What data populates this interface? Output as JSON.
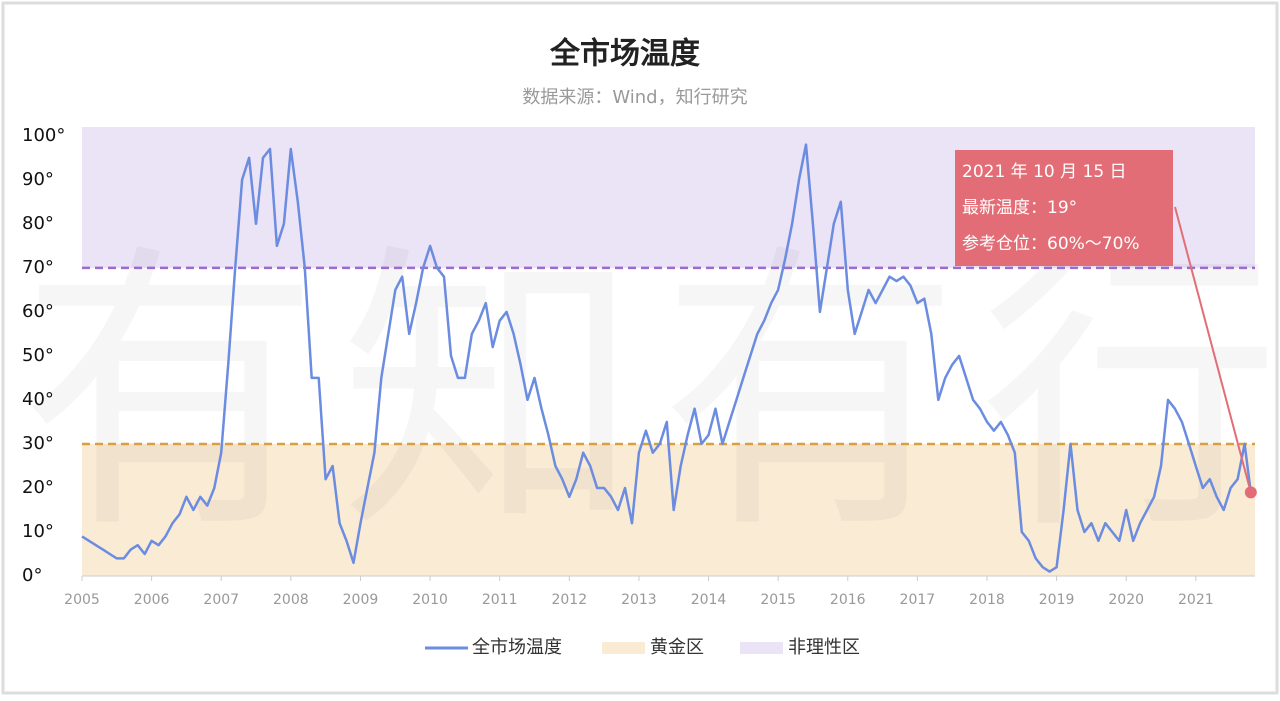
{
  "chart_data": {
    "type": "line",
    "title": "全市场温度",
    "subtitle": "数据来源：Wind，知行研究",
    "watermark": "有知有行",
    "x": [
      2005.0,
      2005.1,
      2005.2,
      2005.3,
      2005.4,
      2005.5,
      2005.6,
      2005.7,
      2005.8,
      2005.9,
      2006.0,
      2006.1,
      2006.2,
      2006.3,
      2006.4,
      2006.5,
      2006.6,
      2006.7,
      2006.8,
      2006.9,
      2007.0,
      2007.1,
      2007.2,
      2007.3,
      2007.4,
      2007.5,
      2007.6,
      2007.7,
      2007.8,
      2007.9,
      2008.0,
      2008.1,
      2008.2,
      2008.3,
      2008.4,
      2008.5,
      2008.6,
      2008.7,
      2008.8,
      2008.9,
      2009.0,
      2009.1,
      2009.2,
      2009.3,
      2009.4,
      2009.5,
      2009.6,
      2009.7,
      2009.8,
      2009.9,
      2010.0,
      2010.1,
      2010.2,
      2010.3,
      2010.4,
      2010.5,
      2010.6,
      2010.7,
      2010.8,
      2010.9,
      2011.0,
      2011.1,
      2011.2,
      2011.3,
      2011.4,
      2011.5,
      2011.6,
      2011.7,
      2011.8,
      2011.9,
      2012.0,
      2012.1,
      2012.2,
      2012.3,
      2012.4,
      2012.5,
      2012.6,
      2012.7,
      2012.8,
      2012.9,
      2013.0,
      2013.1,
      2013.2,
      2013.3,
      2013.4,
      2013.5,
      2013.6,
      2013.7,
      2013.8,
      2013.9,
      2014.0,
      2014.1,
      2014.2,
      2014.3,
      2014.4,
      2014.5,
      2014.6,
      2014.7,
      2014.8,
      2014.9,
      2015.0,
      2015.1,
      2015.2,
      2015.3,
      2015.4,
      2015.5,
      2015.6,
      2015.7,
      2015.8,
      2015.9,
      2016.0,
      2016.1,
      2016.2,
      2016.3,
      2016.4,
      2016.5,
      2016.6,
      2016.7,
      2016.8,
      2016.9,
      2017.0,
      2017.1,
      2017.2,
      2017.3,
      2017.4,
      2017.5,
      2017.6,
      2017.7,
      2017.8,
      2017.9,
      2018.0,
      2018.1,
      2018.2,
      2018.3,
      2018.4,
      2018.5,
      2018.6,
      2018.7,
      2018.8,
      2018.9,
      2019.0,
      2019.1,
      2019.2,
      2019.3,
      2019.4,
      2019.5,
      2019.6,
      2019.7,
      2019.8,
      2019.9,
      2020.0,
      2020.1,
      2020.2,
      2020.3,
      2020.4,
      2020.5,
      2020.6,
      2020.7,
      2020.8,
      2020.9,
      2021.0,
      2021.1,
      2021.2,
      2021.3,
      2021.4,
      2021.5,
      2021.6,
      2021.7,
      2021.79
    ],
    "series": [
      {
        "name": "全市场温度",
        "color": "#6b8ce0",
        "values": [
          9,
          8,
          7,
          6,
          5,
          4,
          4,
          6,
          7,
          5,
          8,
          7,
          9,
          12,
          14,
          18,
          15,
          18,
          16,
          20,
          28,
          48,
          70,
          90,
          95,
          80,
          95,
          97,
          75,
          80,
          97,
          85,
          70,
          45,
          45,
          22,
          25,
          12,
          8,
          3,
          12,
          20,
          28,
          45,
          55,
          65,
          68,
          55,
          62,
          70,
          75,
          70,
          68,
          50,
          45,
          45,
          55,
          58,
          62,
          52,
          58,
          60,
          55,
          48,
          40,
          45,
          38,
          32,
          25,
          22,
          18,
          22,
          28,
          25,
          20,
          20,
          18,
          15,
          20,
          12,
          28,
          33,
          28,
          30,
          35,
          15,
          25,
          32,
          38,
          30,
          32,
          38,
          30,
          35,
          40,
          45,
          50,
          55,
          58,
          62,
          65,
          72,
          80,
          90,
          98,
          80,
          60,
          70,
          80,
          85,
          65,
          55,
          60,
          65,
          62,
          65,
          68,
          67,
          68,
          66,
          62,
          63,
          55,
          40,
          45,
          48,
          50,
          45,
          40,
          38,
          35,
          33,
          35,
          32,
          28,
          10,
          8,
          4,
          2,
          1,
          2,
          15,
          30,
          15,
          10,
          12,
          8,
          12,
          10,
          8,
          15,
          8,
          12,
          15,
          18,
          25,
          40,
          38,
          35,
          30,
          25,
          20,
          22,
          18,
          15,
          20,
          22,
          30,
          19
        ]
      }
    ],
    "bands": [
      {
        "name": "黄金区",
        "range": [
          0,
          30
        ],
        "color": "#faebd5"
      },
      {
        "name": "非理性区",
        "range": [
          70,
          102
        ],
        "color": "#ebe3f6"
      }
    ],
    "reference_lines": [
      {
        "value": 30,
        "color": "#d9a040"
      },
      {
        "value": 70,
        "color": "#9b6bd0"
      }
    ],
    "xlim": [
      2005,
      2021.85
    ],
    "xticks": [
      2005,
      2006,
      2007,
      2008,
      2009,
      2010,
      2011,
      2012,
      2013,
      2014,
      2015,
      2016,
      2017,
      2018,
      2019,
      2020,
      2021
    ],
    "ylim": [
      0,
      102
    ],
    "yticks": [
      {
        "value": 0,
        "label": "0°"
      },
      {
        "value": 10,
        "label": "10°"
      },
      {
        "value": 20,
        "label": "20°"
      },
      {
        "value": 30,
        "label": "30°"
      },
      {
        "value": 40,
        "label": "40°"
      },
      {
        "value": 50,
        "label": "50°"
      },
      {
        "value": 60,
        "label": "60°"
      },
      {
        "value": 70,
        "label": "70°"
      },
      {
        "value": 80,
        "label": "80°"
      },
      {
        "value": 90,
        "label": "90°"
      },
      {
        "value": 100,
        "label": "100°"
      }
    ],
    "annotation": {
      "lines": [
        "2021 年 10 月 15 日",
        "最新温度：19°",
        "参考仓位：60%～70%"
      ],
      "color": "#e36d76"
    },
    "legend": "bottom"
  }
}
